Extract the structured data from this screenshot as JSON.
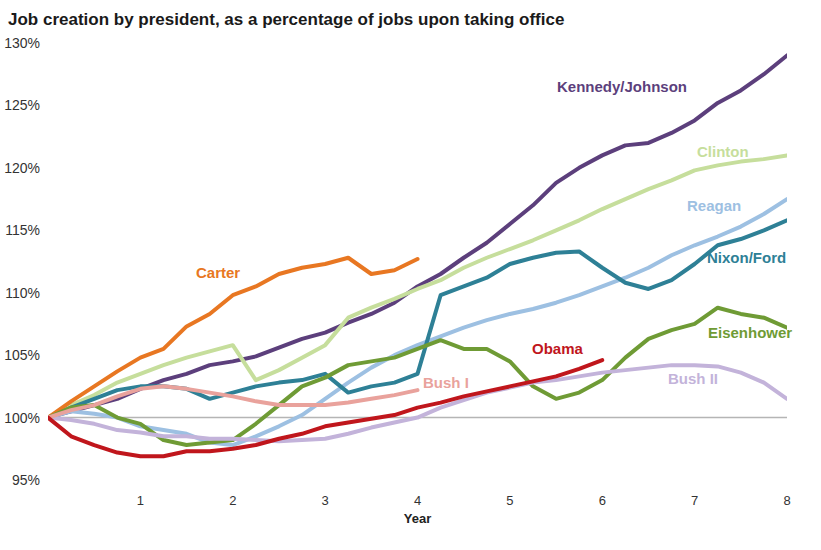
{
  "chart_data": {
    "type": "line",
    "title": "Job creation by president, as a percentage of jobs upon taking office",
    "x_label": "Year",
    "x": [
      0,
      0.25,
      0.5,
      0.75,
      1,
      1.25,
      1.5,
      1.75,
      2,
      2.25,
      2.5,
      2.75,
      3,
      3.25,
      3.5,
      3.75,
      4,
      4.25,
      4.5,
      4.75,
      5,
      5.25,
      5.5,
      5.75,
      6,
      6.25,
      6.5,
      6.75,
      7,
      7.25,
      7.5,
      7.75,
      8
    ],
    "xlim": [
      0,
      8
    ],
    "xticks": [
      1,
      2,
      3,
      4,
      5,
      6,
      7,
      8
    ],
    "ylim": [
      95,
      130
    ],
    "yticks": [
      {
        "value": 95,
        "label": "95%"
      },
      {
        "value": 100,
        "label": "100%"
      },
      {
        "value": 105,
        "label": "105%"
      },
      {
        "value": 110,
        "label": "110%"
      },
      {
        "value": 115,
        "label": "115%"
      },
      {
        "value": 120,
        "label": "120%"
      },
      {
        "value": 125,
        "label": "125%"
      },
      {
        "value": 130,
        "label": "130%"
      }
    ],
    "grid": false,
    "series": [
      {
        "name": "Kennedy/Johnson",
        "color": "#5c3f7c",
        "values": [
          100,
          100.5,
          101,
          101.5,
          102.3,
          103,
          103.5,
          104.2,
          104.5,
          104.9,
          105.6,
          106.3,
          106.8,
          107.6,
          108.3,
          109.2,
          110.5,
          111.5,
          112.8,
          114,
          115.5,
          117,
          118.8,
          120,
          121,
          121.8,
          122,
          122.8,
          123.8,
          125.2,
          126.2,
          127.5,
          129
        ]
      },
      {
        "name": "Clinton",
        "color": "#c6de9c",
        "values": [
          100,
          101,
          101.8,
          102.8,
          103.5,
          104.2,
          104.8,
          105.3,
          105.8,
          103,
          103.8,
          104.8,
          105.8,
          108,
          108.8,
          109.5,
          110.3,
          111,
          112,
          112.8,
          113.5,
          114.2,
          115,
          115.8,
          116.7,
          117.5,
          118.3,
          119,
          119.8,
          120.2,
          120.5,
          120.7,
          121
        ]
      },
      {
        "name": "Reagan",
        "color": "#9dc0e2",
        "values": [
          100,
          100.5,
          100.3,
          100,
          99.3,
          99,
          98.7,
          98,
          97.8,
          98.5,
          99.3,
          100.2,
          101.5,
          102.8,
          104,
          105,
          105.8,
          106.5,
          107.2,
          107.8,
          108.3,
          108.7,
          109.2,
          109.8,
          110.5,
          111.2,
          112,
          113,
          113.8,
          114.5,
          115.3,
          116.3,
          117.5
        ]
      },
      {
        "name": "Nixon/Ford",
        "color": "#2e8096",
        "values": [
          100,
          100.8,
          101.5,
          102.2,
          102.5,
          102.5,
          102.3,
          101.5,
          102,
          102.5,
          102.8,
          103,
          103.5,
          102,
          102.5,
          102.8,
          103.5,
          109.8,
          110.5,
          111.2,
          112.3,
          112.8,
          113.2,
          113.3,
          112,
          110.8,
          110.3,
          111,
          112.3,
          113.8,
          114.3,
          115,
          115.8
        ]
      },
      {
        "name": "Carter",
        "color": "#e87722",
        "values": [
          100,
          101.3,
          102.5,
          103.7,
          104.8,
          105.5,
          107.3,
          108.3,
          109.8,
          110.5,
          111.5,
          112,
          112.3,
          112.8,
          111.5,
          111.8,
          112.7,
          null,
          null,
          null,
          null,
          null,
          null,
          null,
          null,
          null,
          null,
          null,
          null,
          null,
          null,
          null,
          null
        ]
      },
      {
        "name": "Eisenhower",
        "color": "#6f9b35",
        "values": [
          100,
          100.8,
          101,
          100,
          99.5,
          98.2,
          97.8,
          98,
          98.2,
          99.5,
          101,
          102.5,
          103.2,
          104.2,
          104.5,
          104.8,
          105.5,
          106.2,
          105.5,
          105.5,
          104.5,
          102.5,
          101.5,
          102,
          103,
          104.8,
          106.3,
          107,
          107.5,
          108.8,
          108.3,
          108,
          107.2
        ]
      },
      {
        "name": "Bush II",
        "color": "#c3b3da",
        "values": [
          100,
          99.8,
          99.5,
          99,
          98.8,
          98.5,
          98.5,
          98.3,
          98.3,
          98.2,
          98.1,
          98.2,
          98.3,
          98.7,
          99.2,
          99.6,
          100,
          100.8,
          101.4,
          102,
          102.4,
          102.8,
          103,
          103.3,
          103.6,
          103.8,
          104,
          104.2,
          104.2,
          104.1,
          103.6,
          102.8,
          101.5
        ]
      },
      {
        "name": "Bush I",
        "color": "#e9a29c",
        "values": [
          100,
          100.6,
          101,
          101.7,
          102.3,
          102.5,
          102.3,
          102,
          101.7,
          101.3,
          101,
          101,
          101,
          101.2,
          101.5,
          101.8,
          102.2,
          null,
          null,
          null,
          null,
          null,
          null,
          null,
          null,
          null,
          null,
          null,
          null,
          null,
          null,
          null,
          null
        ]
      },
      {
        "name": "Obama",
        "color": "#c0161c",
        "values": [
          100,
          98.5,
          97.8,
          97.2,
          96.9,
          96.9,
          97.3,
          97.3,
          97.5,
          97.8,
          98.3,
          98.7,
          99.3,
          99.6,
          99.9,
          100.2,
          100.8,
          101.2,
          101.7,
          102.1,
          102.5,
          102.9,
          103.3,
          103.9,
          104.6,
          null,
          null,
          null,
          null,
          null,
          null,
          null,
          null
        ]
      }
    ]
  }
}
